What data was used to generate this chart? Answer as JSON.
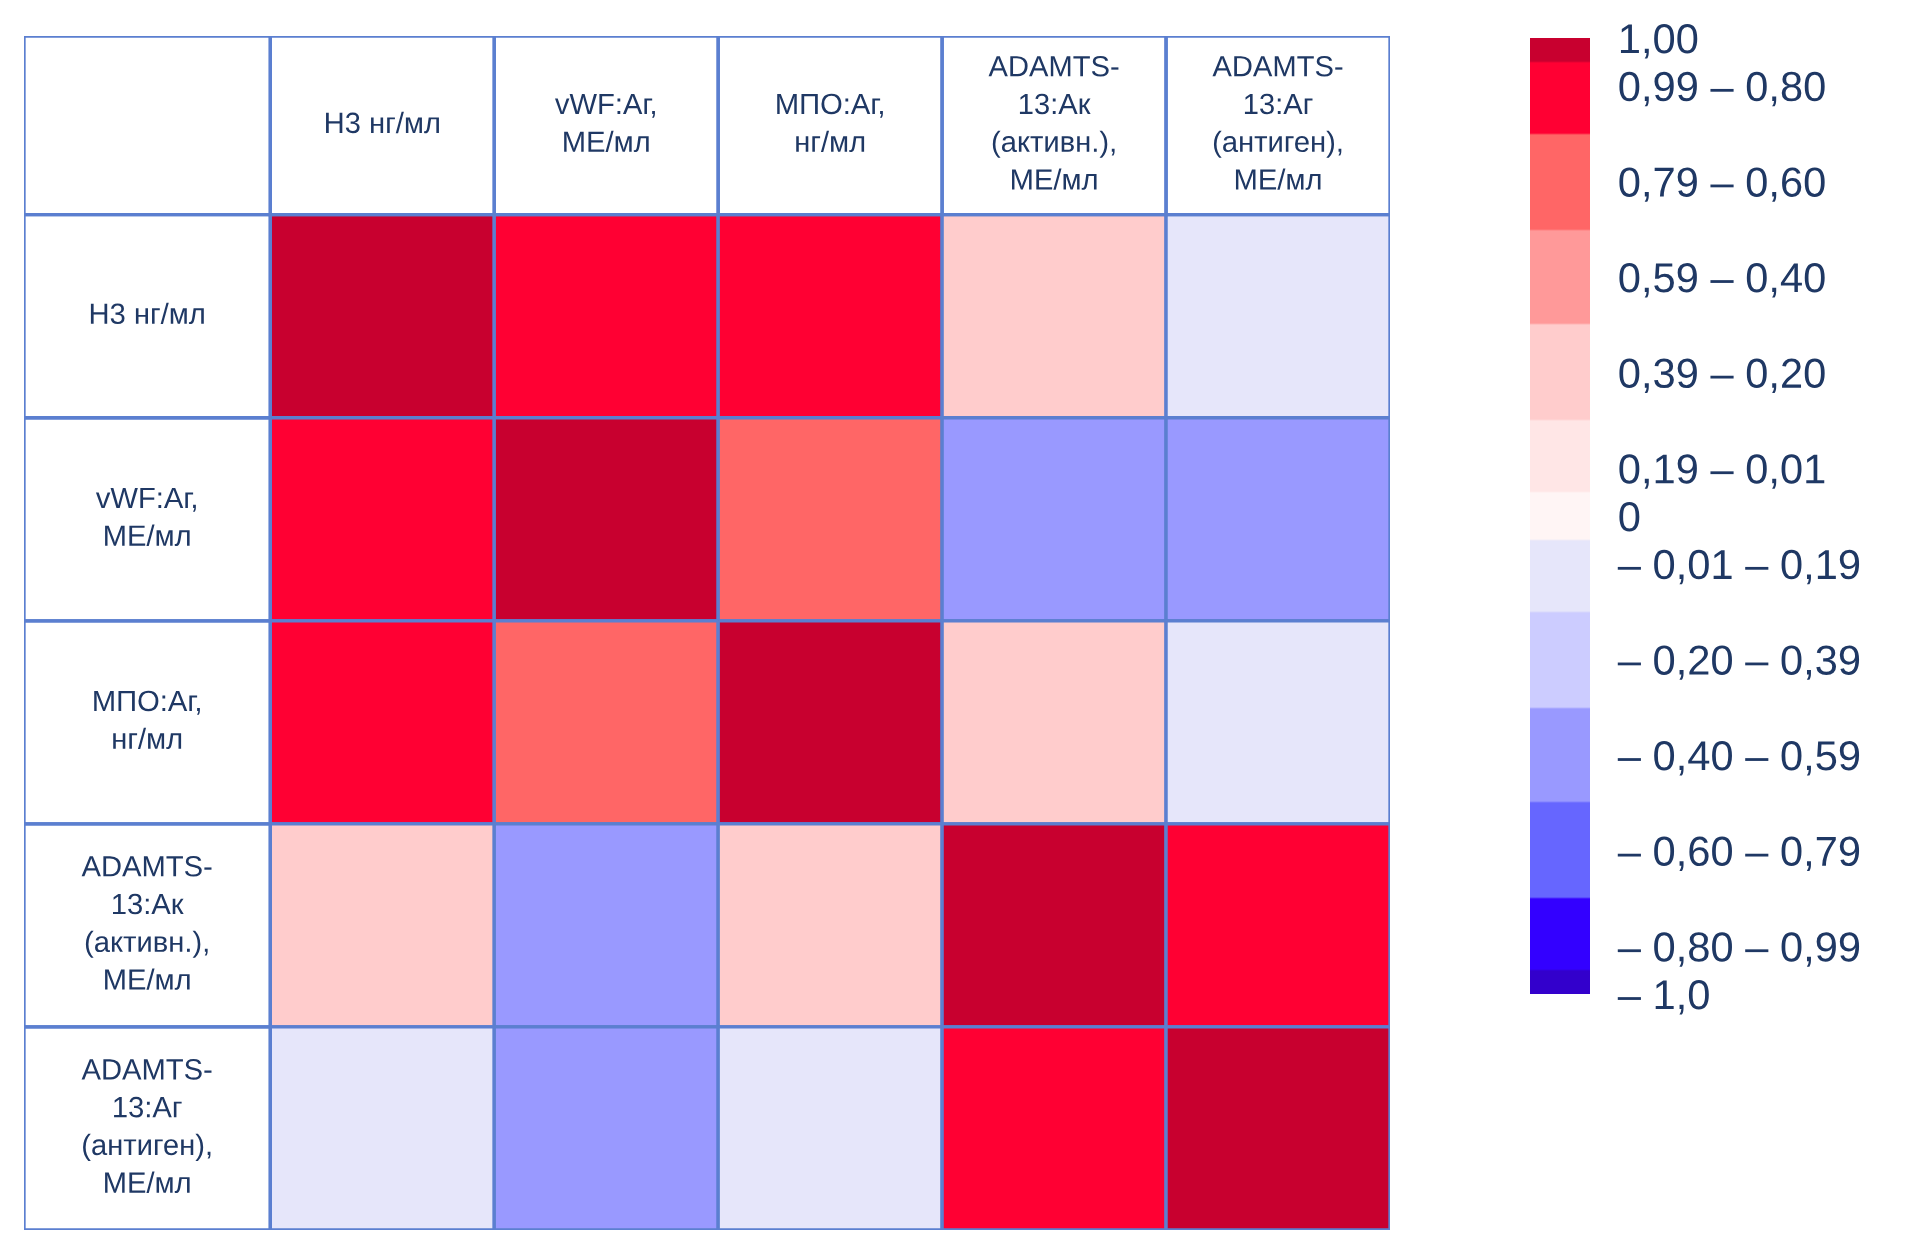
{
  "chart_data": {
    "type": "heatmap",
    "categories": [
      "Н3 нг/мл",
      "vWF:Аг,\nМЕ/мл",
      "МПО:Аг,\nнг/мл",
      "ADAMTS-\n13:Ак\n(активн.),\nМЕ/мл",
      "ADAMTS-\n13:Аг\n(антиген),\nМЕ/мл"
    ],
    "y_categories": [
      "Н3 нг/мл",
      "vWF:Аг,\nМЕ/мл",
      "МПО:Аг,\nнг/мл",
      "ADAMTS-\n13:Ак\n(активн.),\nМЕ/мл",
      "ADAMTS-\n13:Аг\n(антиген),\nМЕ/мл"
    ],
    "cells": [
      [
        1.0,
        0.9,
        0.9,
        0.3,
        -0.1
      ],
      [
        0.9,
        1.0,
        0.7,
        -0.5,
        -0.5
      ],
      [
        0.9,
        0.7,
        1.0,
        0.3,
        -0.1
      ],
      [
        0.3,
        -0.5,
        0.3,
        1.0,
        0.9
      ],
      [
        -0.1,
        -0.5,
        -0.1,
        0.9,
        1.0
      ]
    ],
    "clim": [
      -1.0,
      1.0
    ],
    "cticks": [
      {
        "value": -1.0,
        "label": "– 1,0"
      },
      {
        "value": -0.9,
        "label": "– 0,80 – 0,99"
      },
      {
        "value": -0.7,
        "label": "– 0,60 – 0,79"
      },
      {
        "value": -0.5,
        "label": "– 0,40 – 0,59"
      },
      {
        "value": -0.3,
        "label": "– 0,20 – 0,39"
      },
      {
        "value": -0.1,
        "label": "– 0,01 – 0,19"
      },
      {
        "value": 0,
        "label": "0"
      },
      {
        "value": 0.1,
        "label": "0,19 – 0,01"
      },
      {
        "value": 0.3,
        "label": "0,39 – 0,20"
      },
      {
        "value": 0.5,
        "label": "0,59 – 0,40"
      },
      {
        "value": 0.7,
        "label": "0,79 – 0,60"
      },
      {
        "value": 0.9,
        "label": "0,99 – 0,80"
      },
      {
        "value": 1.0,
        "label": "1,00"
      }
    ],
    "colors": [
      "#3300cc",
      "#3300ff",
      "#6666ff",
      "#9999ff",
      "#ccccff",
      "#e6e6fa",
      "#fff5f5",
      "#ffe6e6",
      "#ffcccc",
      "#ff9999",
      "#ff6666",
      "#ff0033",
      "#c8002f"
    ]
  }
}
